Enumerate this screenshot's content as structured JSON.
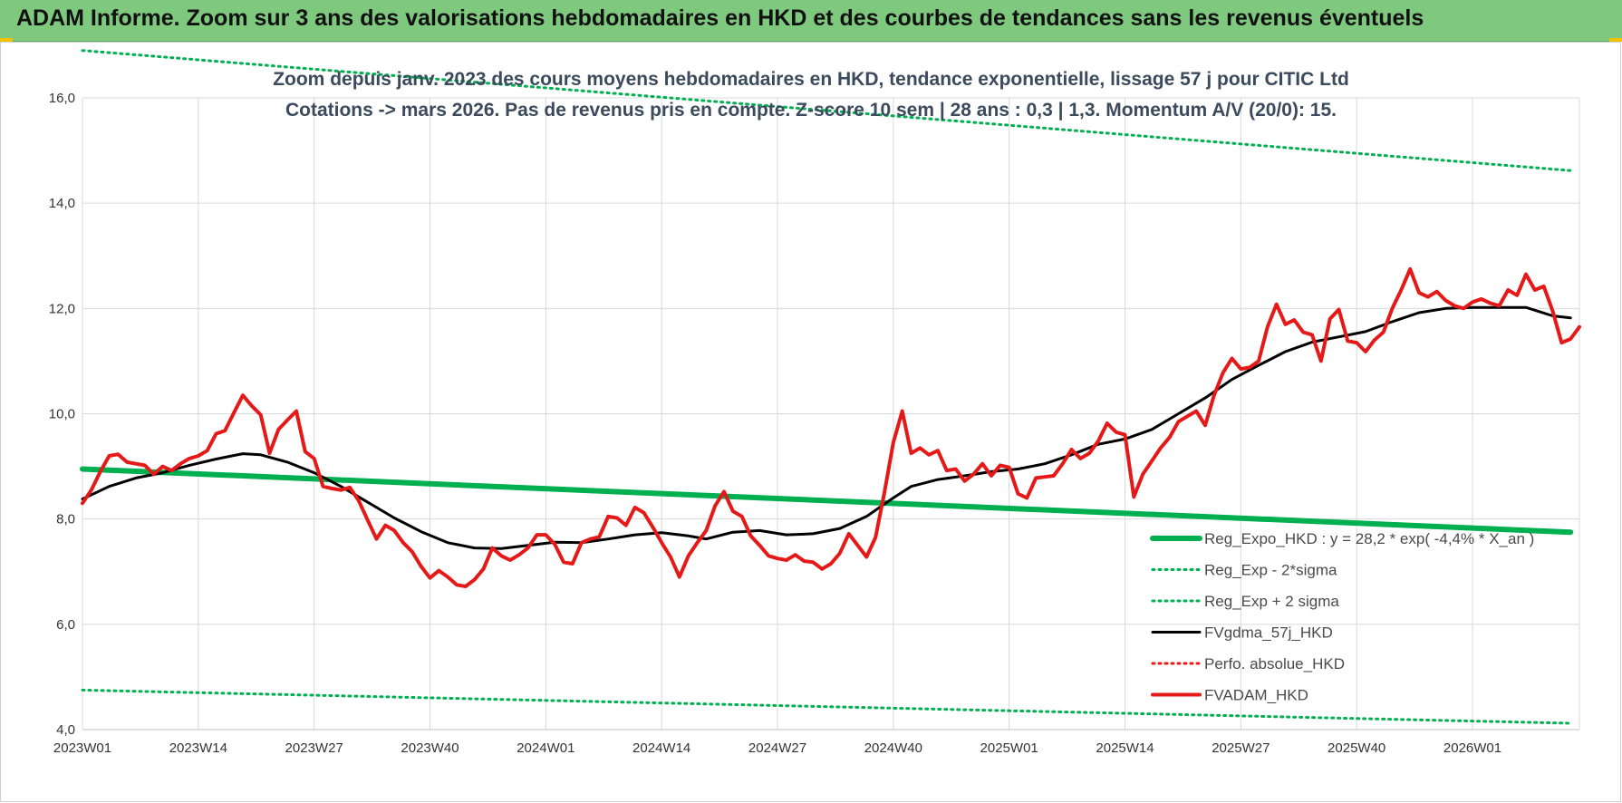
{
  "banner": {
    "title": "ADAM Informe. Zoom sur 3 ans des valorisations hebdomadaires en HKD et des courbes de tendances sans les revenus éventuels"
  },
  "colors": {
    "banner": "#7fc97f",
    "trend": "#00b050",
    "price": "#e61919",
    "average": "#000000",
    "perfo": "#e61919"
  },
  "chart_data": {
    "type": "line",
    "title": "Zoom depuis janv. 2023 des cours moyens hebdomadaires en HKD, tendance exponentielle, lissage 57 j pour CITIC Ltd",
    "subtitle": "Cotations -> mars 2026. Pas de revenus pris en compte. Z-score 10 sem | 28 ans : 0,3 | 1,3. Momentum A/V (20/0): 15.",
    "xlabel": "",
    "ylabel": "",
    "ylim": [
      4.0,
      16.0
    ],
    "y_ticks": [
      "4,0",
      "6,0",
      "8,0",
      "10,0",
      "12,0",
      "14,0",
      "16,0"
    ],
    "x_ticks": [
      "2023W01",
      "2023W14",
      "2023W27",
      "2023W40",
      "2024W01",
      "2024W14",
      "2024W27",
      "2024W40",
      "2025W01",
      "2025W14",
      "2025W27",
      "2025W40",
      "2026W01"
    ],
    "grid": true,
    "legend_position": "bottom-right",
    "series": [
      {
        "name": "Reg_Expo_HKD : y = 28,2 * exp( -4,4% * X_an )",
        "style": "thick-solid",
        "color": "#00b050",
        "points": [
          [
            "2023W01",
            8.95
          ],
          [
            "2026W12",
            7.75
          ]
        ]
      },
      {
        "name": "Reg_Exp - 2*sigma",
        "style": "dotted",
        "color": "#00b050",
        "points": [
          [
            "2023W01",
            4.75
          ],
          [
            "2026W12",
            4.12
          ]
        ]
      },
      {
        "name": "Reg_Exp + 2 sigma",
        "style": "dotted",
        "color": "#00b050",
        "points": [
          [
            "2023W01",
            16.9
          ],
          [
            "2026W12",
            14.62
          ]
        ]
      },
      {
        "name": "FVgdma_57j_HKD",
        "style": "solid",
        "color": "#000000",
        "points": [
          [
            "2023W01",
            8.38
          ],
          [
            "2023W04",
            8.62
          ],
          [
            "2023W07",
            8.78
          ],
          [
            "2023W10",
            8.88
          ],
          [
            "2023W13",
            9.02
          ],
          [
            "2023W16",
            9.14
          ],
          [
            "2023W19",
            9.24
          ],
          [
            "2023W21",
            9.22
          ],
          [
            "2023W24",
            9.08
          ],
          [
            "2023W27",
            8.88
          ],
          [
            "2023W30",
            8.62
          ],
          [
            "2023W33",
            8.32
          ],
          [
            "2023W36",
            8.02
          ],
          [
            "2023W39",
            7.76
          ],
          [
            "2023W42",
            7.55
          ],
          [
            "2023W45",
            7.45
          ],
          [
            "2023W48",
            7.44
          ],
          [
            "2023W51",
            7.5
          ],
          [
            "2024W02",
            7.56
          ],
          [
            "2024W05",
            7.55
          ],
          [
            "2024W08",
            7.62
          ],
          [
            "2024W11",
            7.7
          ],
          [
            "2024W14",
            7.74
          ],
          [
            "2024W17",
            7.68
          ],
          [
            "2024W19",
            7.62
          ],
          [
            "2024W22",
            7.75
          ],
          [
            "2024W25",
            7.78
          ],
          [
            "2024W28",
            7.7
          ],
          [
            "2024W31",
            7.72
          ],
          [
            "2024W34",
            7.82
          ],
          [
            "2024W37",
            8.05
          ],
          [
            "2024W40",
            8.4
          ],
          [
            "2024W42",
            8.62
          ],
          [
            "2024W45",
            8.75
          ],
          [
            "2024W48",
            8.82
          ],
          [
            "2024W51",
            8.9
          ],
          [
            "2025W02",
            8.95
          ],
          [
            "2025W05",
            9.05
          ],
          [
            "2025W08",
            9.22
          ],
          [
            "2025W11",
            9.42
          ],
          [
            "2025W14",
            9.52
          ],
          [
            "2025W17",
            9.7
          ],
          [
            "2025W20",
            10.0
          ],
          [
            "2025W23",
            10.3
          ],
          [
            "2025W26",
            10.65
          ],
          [
            "2025W29",
            10.92
          ],
          [
            "2025W32",
            11.18
          ],
          [
            "2025W35",
            11.36
          ],
          [
            "2025W38",
            11.46
          ],
          [
            "2025W41",
            11.56
          ],
          [
            "2025W44",
            11.75
          ],
          [
            "2025W47",
            11.92
          ],
          [
            "2025W50",
            12.0
          ],
          [
            "2026W01",
            12.02
          ],
          [
            "2026W04",
            12.02
          ],
          [
            "2026W07",
            12.02
          ],
          [
            "2026W10",
            11.86
          ],
          [
            "2026W12",
            11.82
          ]
        ]
      },
      {
        "name": "Perfo. absolue_HKD",
        "style": "dotted",
        "color": "#e61919",
        "points": []
      },
      {
        "name": "FVADAM_HKD",
        "style": "thick-solid",
        "color": "#e61919",
        "points": [
          [
            "2023W01",
            8.3
          ],
          [
            "2023W02",
            8.55
          ],
          [
            "2023W03",
            8.9
          ],
          [
            "2023W04",
            9.2
          ],
          [
            "2023W05",
            9.23
          ],
          [
            "2023W06",
            9.08
          ],
          [
            "2023W07",
            9.05
          ],
          [
            "2023W08",
            9.02
          ],
          [
            "2023W09",
            8.85
          ],
          [
            "2023W10",
            9.0
          ],
          [
            "2023W11",
            8.92
          ],
          [
            "2023W12",
            9.05
          ],
          [
            "2023W13",
            9.15
          ],
          [
            "2023W14",
            9.2
          ],
          [
            "2023W15",
            9.3
          ],
          [
            "2023W16",
            9.62
          ],
          [
            "2023W17",
            9.68
          ],
          [
            "2023W18",
            10.02
          ],
          [
            "2023W19",
            10.35
          ],
          [
            "2023W20",
            10.15
          ],
          [
            "2023W21",
            9.98
          ],
          [
            "2023W22",
            9.25
          ],
          [
            "2023W23",
            9.7
          ],
          [
            "2023W24",
            9.88
          ],
          [
            "2023W25",
            10.05
          ],
          [
            "2023W26",
            9.28
          ],
          [
            "2023W27",
            9.15
          ],
          [
            "2023W28",
            8.62
          ],
          [
            "2023W29",
            8.58
          ],
          [
            "2023W30",
            8.55
          ],
          [
            "2023W31",
            8.6
          ],
          [
            "2023W32",
            8.35
          ],
          [
            "2023W33",
            7.98
          ],
          [
            "2023W34",
            7.62
          ],
          [
            "2023W35",
            7.88
          ],
          [
            "2023W36",
            7.78
          ],
          [
            "2023W37",
            7.55
          ],
          [
            "2023W38",
            7.38
          ],
          [
            "2023W39",
            7.1
          ],
          [
            "2023W40",
            6.88
          ],
          [
            "2023W41",
            7.02
          ],
          [
            "2023W42",
            6.9
          ],
          [
            "2023W43",
            6.75
          ],
          [
            "2023W44",
            6.72
          ],
          [
            "2023W45",
            6.85
          ],
          [
            "2023W46",
            7.05
          ],
          [
            "2023W47",
            7.45
          ],
          [
            "2023W48",
            7.3
          ],
          [
            "2023W49",
            7.22
          ],
          [
            "2023W50",
            7.32
          ],
          [
            "2023W51",
            7.45
          ],
          [
            "2023W52",
            7.7
          ],
          [
            "2024W01",
            7.7
          ],
          [
            "2024W02",
            7.52
          ],
          [
            "2024W03",
            7.18
          ],
          [
            "2024W04",
            7.15
          ],
          [
            "2024W05",
            7.55
          ],
          [
            "2024W06",
            7.62
          ],
          [
            "2024W07",
            7.66
          ],
          [
            "2024W08",
            8.05
          ],
          [
            "2024W09",
            8.02
          ],
          [
            "2024W10",
            7.88
          ],
          [
            "2024W11",
            8.22
          ],
          [
            "2024W12",
            8.12
          ],
          [
            "2024W13",
            7.85
          ],
          [
            "2024W14",
            7.55
          ],
          [
            "2024W15",
            7.28
          ],
          [
            "2024W16",
            6.9
          ],
          [
            "2024W17",
            7.3
          ],
          [
            "2024W18",
            7.55
          ],
          [
            "2024W19",
            7.78
          ],
          [
            "2024W20",
            8.25
          ],
          [
            "2024W21",
            8.52
          ],
          [
            "2024W22",
            8.15
          ],
          [
            "2024W23",
            8.05
          ],
          [
            "2024W24",
            7.68
          ],
          [
            "2024W25",
            7.5
          ],
          [
            "2024W26",
            7.3
          ],
          [
            "2024W27",
            7.25
          ],
          [
            "2024W28",
            7.22
          ],
          [
            "2024W29",
            7.32
          ],
          [
            "2024W30",
            7.2
          ],
          [
            "2024W31",
            7.18
          ],
          [
            "2024W32",
            7.05
          ],
          [
            "2024W33",
            7.15
          ],
          [
            "2024W34",
            7.35
          ],
          [
            "2024W35",
            7.72
          ],
          [
            "2024W36",
            7.5
          ],
          [
            "2024W37",
            7.28
          ],
          [
            "2024W38",
            7.65
          ],
          [
            "2024W39",
            8.5
          ],
          [
            "2024W40",
            9.45
          ],
          [
            "2024W41",
            10.05
          ],
          [
            "2024W42",
            9.25
          ],
          [
            "2024W43",
            9.35
          ],
          [
            "2024W44",
            9.22
          ],
          [
            "2024W45",
            9.3
          ],
          [
            "2024W46",
            8.92
          ],
          [
            "2024W47",
            8.95
          ],
          [
            "2024W48",
            8.72
          ],
          [
            "2024W49",
            8.85
          ],
          [
            "2024W50",
            9.05
          ],
          [
            "2024W51",
            8.82
          ],
          [
            "2024W52",
            9.02
          ],
          [
            "2025W01",
            8.98
          ],
          [
            "2025W02",
            8.48
          ],
          [
            "2025W03",
            8.4
          ],
          [
            "2025W04",
            8.78
          ],
          [
            "2025W05",
            8.8
          ],
          [
            "2025W06",
            8.82
          ],
          [
            "2025W07",
            9.05
          ],
          [
            "2025W08",
            9.32
          ],
          [
            "2025W09",
            9.15
          ],
          [
            "2025W10",
            9.25
          ],
          [
            "2025W11",
            9.48
          ],
          [
            "2025W12",
            9.82
          ],
          [
            "2025W13",
            9.65
          ],
          [
            "2025W14",
            9.6
          ],
          [
            "2025W15",
            8.42
          ],
          [
            "2025W16",
            8.85
          ],
          [
            "2025W17",
            9.1
          ],
          [
            "2025W18",
            9.35
          ],
          [
            "2025W19",
            9.55
          ],
          [
            "2025W20",
            9.85
          ],
          [
            "2025W21",
            9.95
          ],
          [
            "2025W22",
            10.05
          ],
          [
            "2025W23",
            9.78
          ],
          [
            "2025W24",
            10.35
          ],
          [
            "2025W25",
            10.78
          ],
          [
            "2025W26",
            11.05
          ],
          [
            "2025W27",
            10.85
          ],
          [
            "2025W28",
            10.88
          ],
          [
            "2025W29",
            11.0
          ],
          [
            "2025W30",
            11.65
          ],
          [
            "2025W31",
            12.08
          ],
          [
            "2025W32",
            11.7
          ],
          [
            "2025W33",
            11.78
          ],
          [
            "2025W34",
            11.55
          ],
          [
            "2025W35",
            11.5
          ],
          [
            "2025W36",
            11.0
          ],
          [
            "2025W37",
            11.8
          ],
          [
            "2025W38",
            11.98
          ],
          [
            "2025W39",
            11.38
          ],
          [
            "2025W40",
            11.35
          ],
          [
            "2025W41",
            11.18
          ],
          [
            "2025W42",
            11.4
          ],
          [
            "2025W43",
            11.55
          ],
          [
            "2025W44",
            12.0
          ],
          [
            "2025W45",
            12.35
          ],
          [
            "2025W46",
            12.75
          ],
          [
            "2025W47",
            12.3
          ],
          [
            "2025W48",
            12.22
          ],
          [
            "2025W49",
            12.32
          ],
          [
            "2025W50",
            12.15
          ],
          [
            "2025W51",
            12.05
          ],
          [
            "2025W52",
            12.0
          ],
          [
            "2026W01",
            12.12
          ],
          [
            "2026W02",
            12.18
          ],
          [
            "2026W03",
            12.1
          ],
          [
            "2026W04",
            12.05
          ],
          [
            "2026W05",
            12.35
          ],
          [
            "2026W06",
            12.25
          ],
          [
            "2026W07",
            12.65
          ],
          [
            "2026W08",
            12.35
          ],
          [
            "2026W09",
            12.42
          ],
          [
            "2026W10",
            11.95
          ],
          [
            "2026W11",
            11.35
          ],
          [
            "2026W12",
            11.42
          ],
          [
            "2026W13",
            11.65
          ]
        ]
      }
    ]
  }
}
